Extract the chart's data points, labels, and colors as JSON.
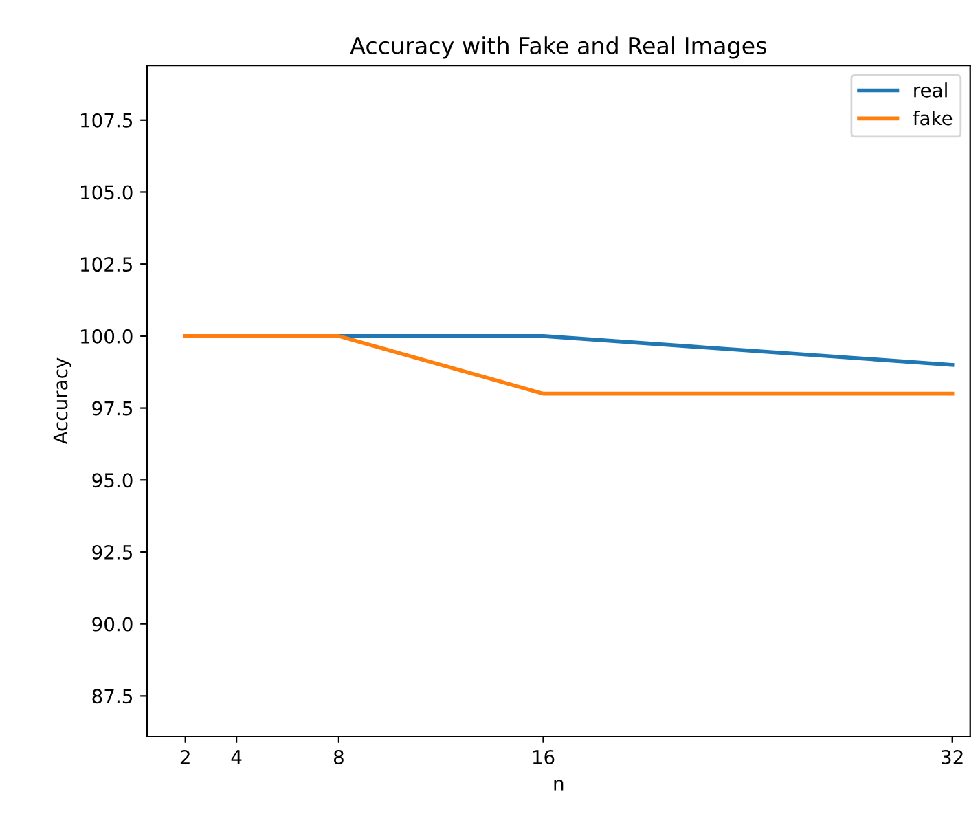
{
  "chart_data": {
    "type": "line",
    "title": "Accuracy with Fake and Real Images",
    "xlabel": "n",
    "ylabel": "Accuracy",
    "x": [
      2,
      4,
      8,
      16,
      32
    ],
    "series": [
      {
        "name": "real",
        "color": "#1f77b4",
        "values": [
          null,
          null,
          100,
          100,
          99
        ]
      },
      {
        "name": "fake",
        "color": "#ff7f0e",
        "values": [
          100,
          100,
          100,
          98,
          98
        ]
      }
    ],
    "xlim": [
      0.5,
      32.7
    ],
    "xticks": [
      2,
      4,
      8,
      16,
      32
    ],
    "ylim": [
      86.1,
      109.4
    ],
    "yticks": [
      87.5,
      {
        "value": 90,
        "label": "90.0"
      },
      92.5,
      {
        "value": 95,
        "label": "95.0"
      },
      97.5,
      {
        "value": 100,
        "label": "100.0"
      },
      102.5,
      {
        "value": 105,
        "label": "105.0"
      },
      107.5
    ],
    "grid": false,
    "legend": "top right",
    "marker": "none",
    "line_style": "solid"
  }
}
